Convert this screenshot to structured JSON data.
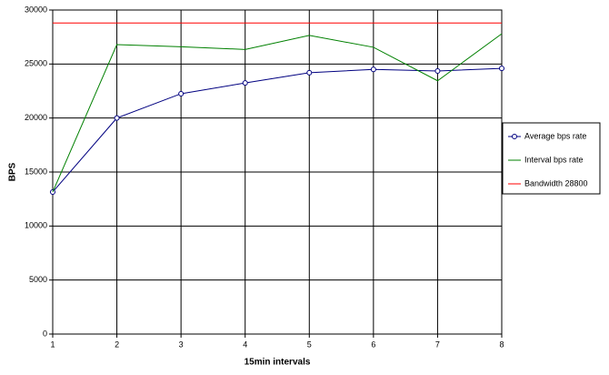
{
  "chart_data": {
    "type": "line",
    "x_label": "15min intervals",
    "y_label": "BPS",
    "x": [
      1,
      2,
      3,
      4,
      5,
      6,
      7,
      8
    ],
    "xlim": [
      1,
      8
    ],
    "xticks": [
      1,
      2,
      3,
      4,
      5,
      6,
      7,
      8
    ],
    "ylim": [
      0,
      30000
    ],
    "yticks": [
      0,
      5000,
      10000,
      15000,
      20000,
      25000,
      30000
    ],
    "grid": true,
    "legend": "right",
    "series": [
      {
        "name": "Average bps rate",
        "color": "#000080",
        "marker": "circle",
        "values": [
          13150,
          20000,
          22250,
          23250,
          24200,
          24500,
          24350,
          24600
        ]
      },
      {
        "name": "Interval bps rate",
        "color": "#008000",
        "values": [
          13150,
          26800,
          26600,
          26350,
          27650,
          26550,
          23450,
          27800
        ]
      },
      {
        "name": "Bandwidth 28800",
        "color": "#ff0000",
        "values": [
          28800,
          28800,
          28800,
          28800,
          28800,
          28800,
          28800,
          28800
        ]
      }
    ]
  }
}
